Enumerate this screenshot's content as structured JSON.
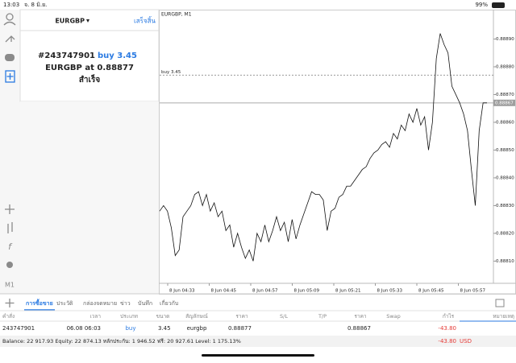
{
  "status": {
    "time": "13:03",
    "date": "จ. 8 มิ.ย.",
    "battery": "99%"
  },
  "order_panel": {
    "symbol": "EURGBP",
    "done": "เสร็จสิ้น",
    "ticket": "#243747901",
    "action": "buy 3.45",
    "summary": "EURGBP at 0.88877",
    "result": "สำเร็จ"
  },
  "sidebar": {
    "function": "f",
    "timeframe": "M1"
  },
  "chart": {
    "title": "EURGBP, M1",
    "color": "#111111",
    "ylim": [
      0.88802,
      0.889
    ],
    "yticks": [
      {
        "value": 0.8889,
        "label": "0.88890"
      },
      {
        "value": 0.8888,
        "label": "0.88880"
      },
      {
        "value": 0.8887,
        "label": "0.88870"
      },
      {
        "value": 0.8886,
        "label": "0.88860"
      },
      {
        "value": 0.8885,
        "label": "0.88850"
      },
      {
        "value": 0.8884,
        "label": "0.88840"
      },
      {
        "value": 0.8883,
        "label": "0.88830"
      },
      {
        "value": 0.8882,
        "label": "0.88820"
      },
      {
        "value": 0.8881,
        "label": "0.88810"
      }
    ],
    "xticks": [
      "8 Jun 04:33",
      "8 Jun 04:45",
      "8 Jun 04:57",
      "8 Jun 05:09",
      "8 Jun 05:21",
      "8 Jun 05:33",
      "8 Jun 05:45",
      "8 Jun 05:57"
    ],
    "values": [
      0.88828,
      0.8883,
      0.88828,
      0.88822,
      0.88812,
      0.88814,
      0.88826,
      0.88828,
      0.8883,
      0.88834,
      0.88835,
      0.8883,
      0.88834,
      0.88828,
      0.88831,
      0.88826,
      0.88828,
      0.88821,
      0.88823,
      0.88815,
      0.8882,
      0.88815,
      0.88811,
      0.88814,
      0.8881,
      0.8882,
      0.88817,
      0.88823,
      0.88817,
      0.88821,
      0.88826,
      0.88821,
      0.88824,
      0.88817,
      0.88825,
      0.88818,
      0.88823,
      0.88827,
      0.88831,
      0.88835,
      0.88834,
      0.88834,
      0.88832,
      0.88821,
      0.88828,
      0.88829,
      0.88833,
      0.88834,
      0.88837,
      0.88837,
      0.88839,
      0.88841,
      0.88843,
      0.88844,
      0.88847,
      0.88849,
      0.8885,
      0.88852,
      0.88853,
      0.88851,
      0.88856,
      0.88854,
      0.88859,
      0.88857,
      0.88863,
      0.8886,
      0.88865,
      0.88859,
      0.88862,
      0.8885,
      0.8886,
      0.88883,
      0.88892,
      0.88888,
      0.88885,
      0.88873,
      0.8887,
      0.88867,
      0.88863,
      0.88857,
      0.88843,
      0.8883,
      0.88857,
      0.88867,
      0.88867
    ],
    "order_line": {
      "label": "buy 3.45",
      "value": 0.88877
    },
    "bid": 0.88867
  },
  "tabs": [
    "การซื้อขาย",
    "ประวัติ",
    "กล่องจดหมาย",
    "ข่าว",
    "บันทึก",
    "เกี่ยวกับ"
  ],
  "table": {
    "headers": [
      "คำสั่ง",
      "เวลา",
      "ประเภท",
      "ขนาด",
      "สัญลักษณ์",
      "ราคา",
      "S/L",
      "T/P",
      "ราคา",
      "Swap",
      "กำไร",
      "หมายเหตุ"
    ],
    "rows": [
      {
        "order": "243747901",
        "time": "06.08 06:03",
        "type": "buy",
        "size": "3.45",
        "symbol": "eurgbp",
        "price": "0.88877",
        "current_price": "0.88867",
        "profit": "-43.80"
      }
    ]
  },
  "footer": {
    "summary": "Balance: 22 917.93 Equity: 22 874.13 หลักประกัน: 1 946.52 ฟรี: 20 927.61 Level: 1 175.13%",
    "profit": "-43.80",
    "currency": "USD"
  }
}
